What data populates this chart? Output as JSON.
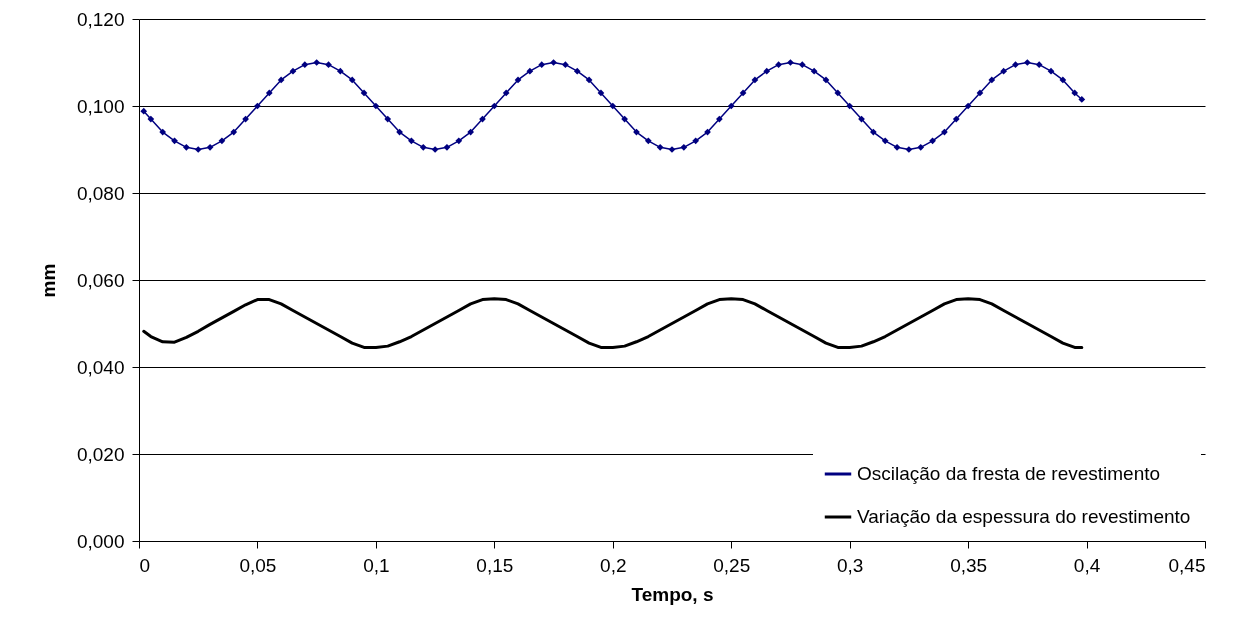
{
  "chart_data": {
    "type": "line",
    "xlabel": "Tempo, s",
    "ylabel": "mm",
    "x": [
      0.002,
      0.005,
      0.01,
      0.015,
      0.02,
      0.025,
      0.03,
      0.035,
      0.04,
      0.045,
      0.05,
      0.055,
      0.06,
      0.065,
      0.07,
      0.075,
      0.08,
      0.085,
      0.09,
      0.095,
      0.1,
      0.105,
      0.11,
      0.115,
      0.12,
      0.125,
      0.13,
      0.135,
      0.14,
      0.145,
      0.15,
      0.155,
      0.16,
      0.165,
      0.17,
      0.175,
      0.18,
      0.185,
      0.19,
      0.195,
      0.2,
      0.205,
      0.21,
      0.215,
      0.22,
      0.225,
      0.23,
      0.235,
      0.24,
      0.245,
      0.25,
      0.255,
      0.26,
      0.265,
      0.27,
      0.275,
      0.28,
      0.285,
      0.29,
      0.295,
      0.3,
      0.305,
      0.31,
      0.315,
      0.32,
      0.325,
      0.33,
      0.335,
      0.34,
      0.345,
      0.35,
      0.355,
      0.36,
      0.365,
      0.37,
      0.375,
      0.38,
      0.385,
      0.39,
      0.395,
      0.398
    ],
    "series": [
      {
        "name": "Oscilação da fresta de revestimento",
        "color": "#000080",
        "marker": "diamond",
        "values": [
          0.0988,
          0.097,
          0.094,
          0.092,
          0.0905,
          0.09,
          0.0905,
          0.092,
          0.094,
          0.097,
          0.1,
          0.103,
          0.106,
          0.108,
          0.1095,
          0.11,
          0.1095,
          0.108,
          0.106,
          0.103,
          0.1,
          0.097,
          0.094,
          0.092,
          0.0905,
          0.09,
          0.0905,
          0.092,
          0.094,
          0.097,
          0.1,
          0.103,
          0.106,
          0.108,
          0.1095,
          0.11,
          0.1095,
          0.108,
          0.106,
          0.103,
          0.1,
          0.097,
          0.094,
          0.092,
          0.0905,
          0.09,
          0.0905,
          0.092,
          0.094,
          0.097,
          0.1,
          0.103,
          0.106,
          0.108,
          0.1095,
          0.11,
          0.1095,
          0.108,
          0.106,
          0.103,
          0.1,
          0.097,
          0.094,
          0.092,
          0.0905,
          0.09,
          0.0905,
          0.092,
          0.094,
          0.097,
          0.1,
          0.103,
          0.106,
          0.108,
          0.1095,
          0.11,
          0.1095,
          0.108,
          0.106,
          0.103,
          0.1015
        ]
      },
      {
        "name": "Variação da espessura do revestimento",
        "color": "#000000",
        "marker": "none",
        "values": [
          0.0482,
          0.047,
          0.0458,
          0.0457,
          0.0468,
          0.0482,
          0.0498,
          0.0513,
          0.0528,
          0.0543,
          0.0555,
          0.0555,
          0.0545,
          0.053,
          0.0515,
          0.05,
          0.0485,
          0.047,
          0.0455,
          0.0445,
          0.0445,
          0.0448,
          0.0458,
          0.047,
          0.0485,
          0.05,
          0.0515,
          0.053,
          0.0545,
          0.0555,
          0.0557,
          0.0555,
          0.0545,
          0.053,
          0.0515,
          0.05,
          0.0485,
          0.047,
          0.0455,
          0.0445,
          0.0445,
          0.0448,
          0.0458,
          0.047,
          0.0485,
          0.05,
          0.0515,
          0.053,
          0.0545,
          0.0555,
          0.0557,
          0.0555,
          0.0545,
          0.053,
          0.0515,
          0.05,
          0.0485,
          0.047,
          0.0455,
          0.0445,
          0.0445,
          0.0448,
          0.0458,
          0.047,
          0.0485,
          0.05,
          0.0515,
          0.053,
          0.0545,
          0.0555,
          0.0557,
          0.0555,
          0.0545,
          0.053,
          0.0515,
          0.05,
          0.0485,
          0.047,
          0.0455,
          0.0445,
          0.0445
        ]
      }
    ],
    "xlim": [
      0,
      0.45
    ],
    "xticks": [
      0,
      {
        "value": 0.05,
        "label": "0,05"
      },
      {
        "value": 0.1,
        "label": "0,1"
      },
      {
        "value": 0.15,
        "label": "0,15"
      },
      {
        "value": 0.2,
        "label": "0,2"
      },
      {
        "value": 0.25,
        "label": "0,25"
      },
      {
        "value": 0.3,
        "label": "0,3"
      },
      {
        "value": 0.35,
        "label": "0,35"
      },
      {
        "value": 0.4,
        "label": "0,4"
      },
      {
        "value": 0.45,
        "label": "0,45"
      }
    ],
    "ylim": [
      0,
      0.12
    ],
    "yticks": [
      {
        "value": 0,
        "label": "0,000"
      },
      {
        "value": 0.02,
        "label": "0,020"
      },
      {
        "value": 0.04,
        "label": "0,040"
      },
      {
        "value": 0.06,
        "label": "0,060"
      },
      {
        "value": 0.08,
        "label": "0,080"
      },
      {
        "value": 0.1,
        "label": "0,100"
      },
      {
        "value": 0.12,
        "label": "0,120"
      }
    ],
    "grid": "y",
    "legend": "bottom right"
  }
}
